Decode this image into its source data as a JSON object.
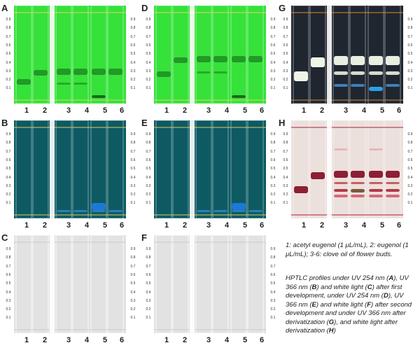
{
  "rf_ticks": [
    "0.9",
    "0.8",
    "0.7",
    "0.6",
    "0.5",
    "0.4",
    "0.3",
    "0.2",
    "0.1"
  ],
  "lane_labels": [
    "1",
    "2",
    "3",
    "4",
    "5",
    "6"
  ],
  "panels": [
    {
      "id": "A",
      "letter": "A",
      "bg": "#36e13a",
      "line": "#d8d65a",
      "band": "#1e9a24"
    },
    {
      "id": "D",
      "letter": "D",
      "bg": "#36e13a",
      "line": "#d8d65a",
      "band": "#1e9a24"
    },
    {
      "id": "G",
      "letter": "G",
      "bg": "#1f2630",
      "line": "#e08a2a",
      "band": "#f2f5ea"
    },
    {
      "id": "B",
      "letter": "B",
      "bg": "#0e5a63",
      "line": "#d6cf5a",
      "band": "#1c8fd0"
    },
    {
      "id": "E",
      "letter": "E",
      "bg": "#0e5a63",
      "line": "#d6cf5a",
      "band": "#1c8fd0"
    },
    {
      "id": "H",
      "letter": "H",
      "bg": "#ece0dc",
      "line": "#a81e3c",
      "band": "#8d1f35"
    },
    {
      "id": "C",
      "letter": "C",
      "bg": "#e2e2e2",
      "line": "#cccccc",
      "band": "#d2d2d2"
    },
    {
      "id": "F",
      "letter": "F",
      "bg": "#e2e2e2",
      "line": "#cccccc",
      "band": "#d2d2d2"
    }
  ],
  "caption1": "1: acetyl eugenol (1 μL/mL), 2: eugenol (1 μL/mL); 3-6: clove oil of flower buds.",
  "caption2": {
    "p1": "HPTLC profiles under UV 254 nm (",
    "l1": "A",
    "p2": "), UV 366 nm (",
    "l2": "B",
    "p3": ") and white light (",
    "l3": "C",
    "p4": ") after first development, under UV 254 nm (",
    "l4": "D",
    "p5": "), UV 366 nm (",
    "l5": "E",
    "p6": ") and white light (",
    "l6": "F",
    "p7": ") after second development and under UV 366 nm after derivatization (",
    "l7": "G",
    "p8": "), and white light after derivatization (",
    "l8": "H",
    "p9": ")"
  }
}
